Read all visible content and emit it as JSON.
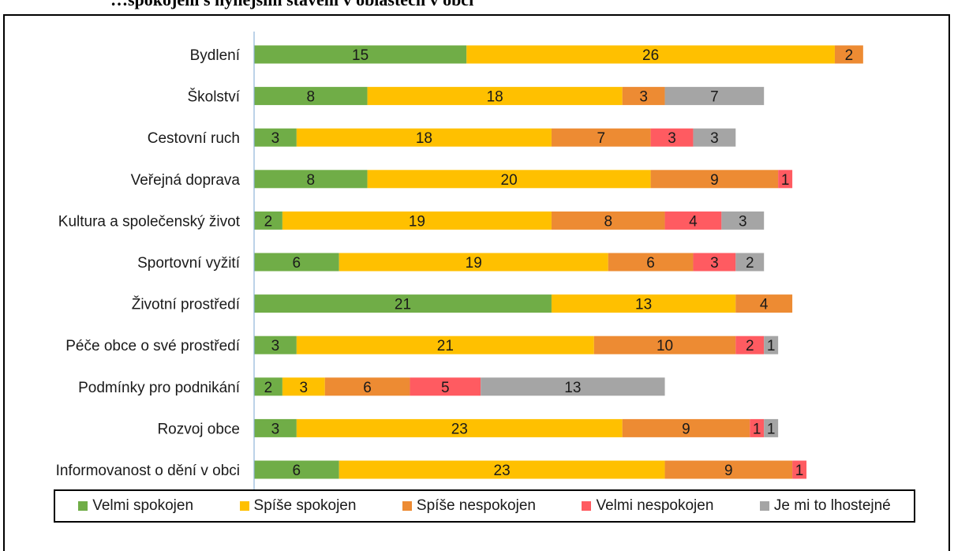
{
  "header": {
    "title": "…spokojeni s nynějším stavem v oblastech v obci"
  },
  "chart_data": {
    "type": "bar",
    "orientation": "horizontal",
    "stacked": true,
    "categories": [
      "Bydlení",
      "Školství",
      "Cestovní ruch",
      "Veřejná doprava",
      "Kultura a společenský život",
      "Sportovní vyžití",
      "Životní prostředí",
      "Péče obce o své prostředí",
      "Podmínky pro podnikání",
      "Rozvoj obce",
      "Informovanost o dění v obci"
    ],
    "series": [
      {
        "name": "Velmi spokojen",
        "color": "#70AD47",
        "values": [
          15,
          8,
          3,
          8,
          2,
          6,
          21,
          3,
          2,
          3,
          6
        ]
      },
      {
        "name": "Spíše spokojen",
        "color": "#FFC000",
        "values": [
          26,
          18,
          18,
          20,
          19,
          19,
          13,
          21,
          3,
          23,
          23
        ]
      },
      {
        "name": "Spíše nespokojen",
        "color": "#ED8B33",
        "values": [
          2,
          3,
          7,
          9,
          8,
          6,
          4,
          10,
          6,
          9,
          9
        ]
      },
      {
        "name": "Velmi nespokojen",
        "color": "#FF5B61",
        "values": [
          0,
          0,
          3,
          1,
          4,
          3,
          0,
          2,
          5,
          1,
          1
        ]
      },
      {
        "name": "Je mi to lhostejné",
        "color": "#A5A5A5",
        "values": [
          0,
          7,
          3,
          0,
          3,
          2,
          0,
          1,
          13,
          1,
          0
        ]
      }
    ],
    "xlim": [
      0,
      49
    ],
    "grid": false,
    "legend": "bottom"
  }
}
